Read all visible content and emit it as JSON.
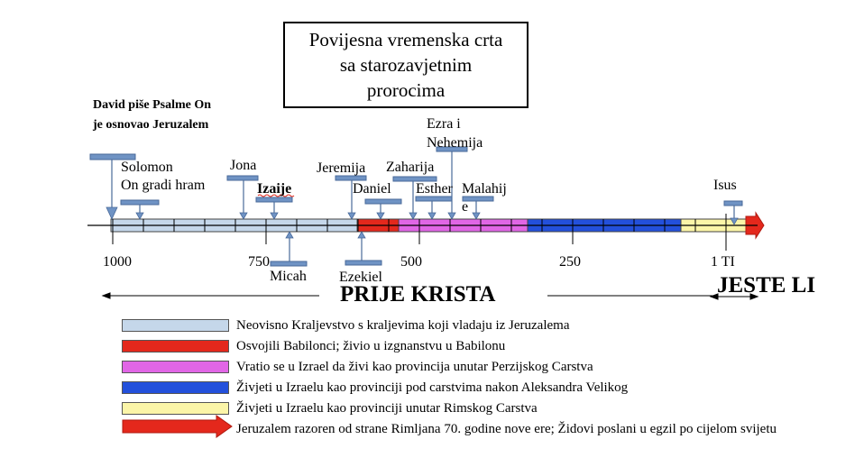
{
  "title": "Povijesna vremenska crta\nsa starozavjetnim\nprorocima",
  "david_note": "David piše Psalme On\nje osnovao Jeruzalem",
  "prophets": {
    "solomon": "Solomon\nOn gradi hram",
    "jona": "Jona",
    "izaije": "Izaije",
    "jeremija": "Jeremija",
    "daniel": "Daniel",
    "ezra": "Ezra i\nNehemija",
    "zaharija": "Zaharija",
    "esther": "Esther",
    "malahije": "Malahij\ne",
    "isus": "Isus",
    "micah": "Micah",
    "ezekiel": "Ezekiel"
  },
  "axis": {
    "labels": [
      "1000",
      "750",
      "500",
      "250",
      "1 TI"
    ]
  },
  "era": {
    "before_christ": "PRIJE KRISTA",
    "after": "JESTE LI"
  },
  "colors": {
    "kingdom": "#c5d7ea",
    "babylon": "#e4281c",
    "persia": "#e166e6",
    "greek": "#2350db",
    "rome": "#fbf5a8",
    "destroyed": "#e4281c",
    "marker": "#6f93c4"
  },
  "legend": [
    {
      "text": "Neovisno Kraljevstvo s kraljevima koji vladaju iz Jeruzalema",
      "color": "#c5d7ea"
    },
    {
      "text": "Osvojili Babilonci; živio u izgnanstvu u Babilonu",
      "color": "#e4281c"
    },
    {
      "text": "Vratio se u Izrael da živi kao provincija unutar Perzijskog Carstva",
      "color": "#e166e6"
    },
    {
      "text": "Živjeti u Izraelu kao provinciji pod carstvima nakon Aleksandra Velikog",
      "color": "#2350db"
    },
    {
      "text": "Živjeti u Izraelu kao provinciji unutar Rimskog Carstva",
      "color": "#fbf5a8"
    },
    {
      "text": "Jeruzalem razoren od strane Rimljana 70. godine nove ere; Židovi poslani u egzil po cijelom svijetu",
      "color": "#e4281c"
    }
  ]
}
